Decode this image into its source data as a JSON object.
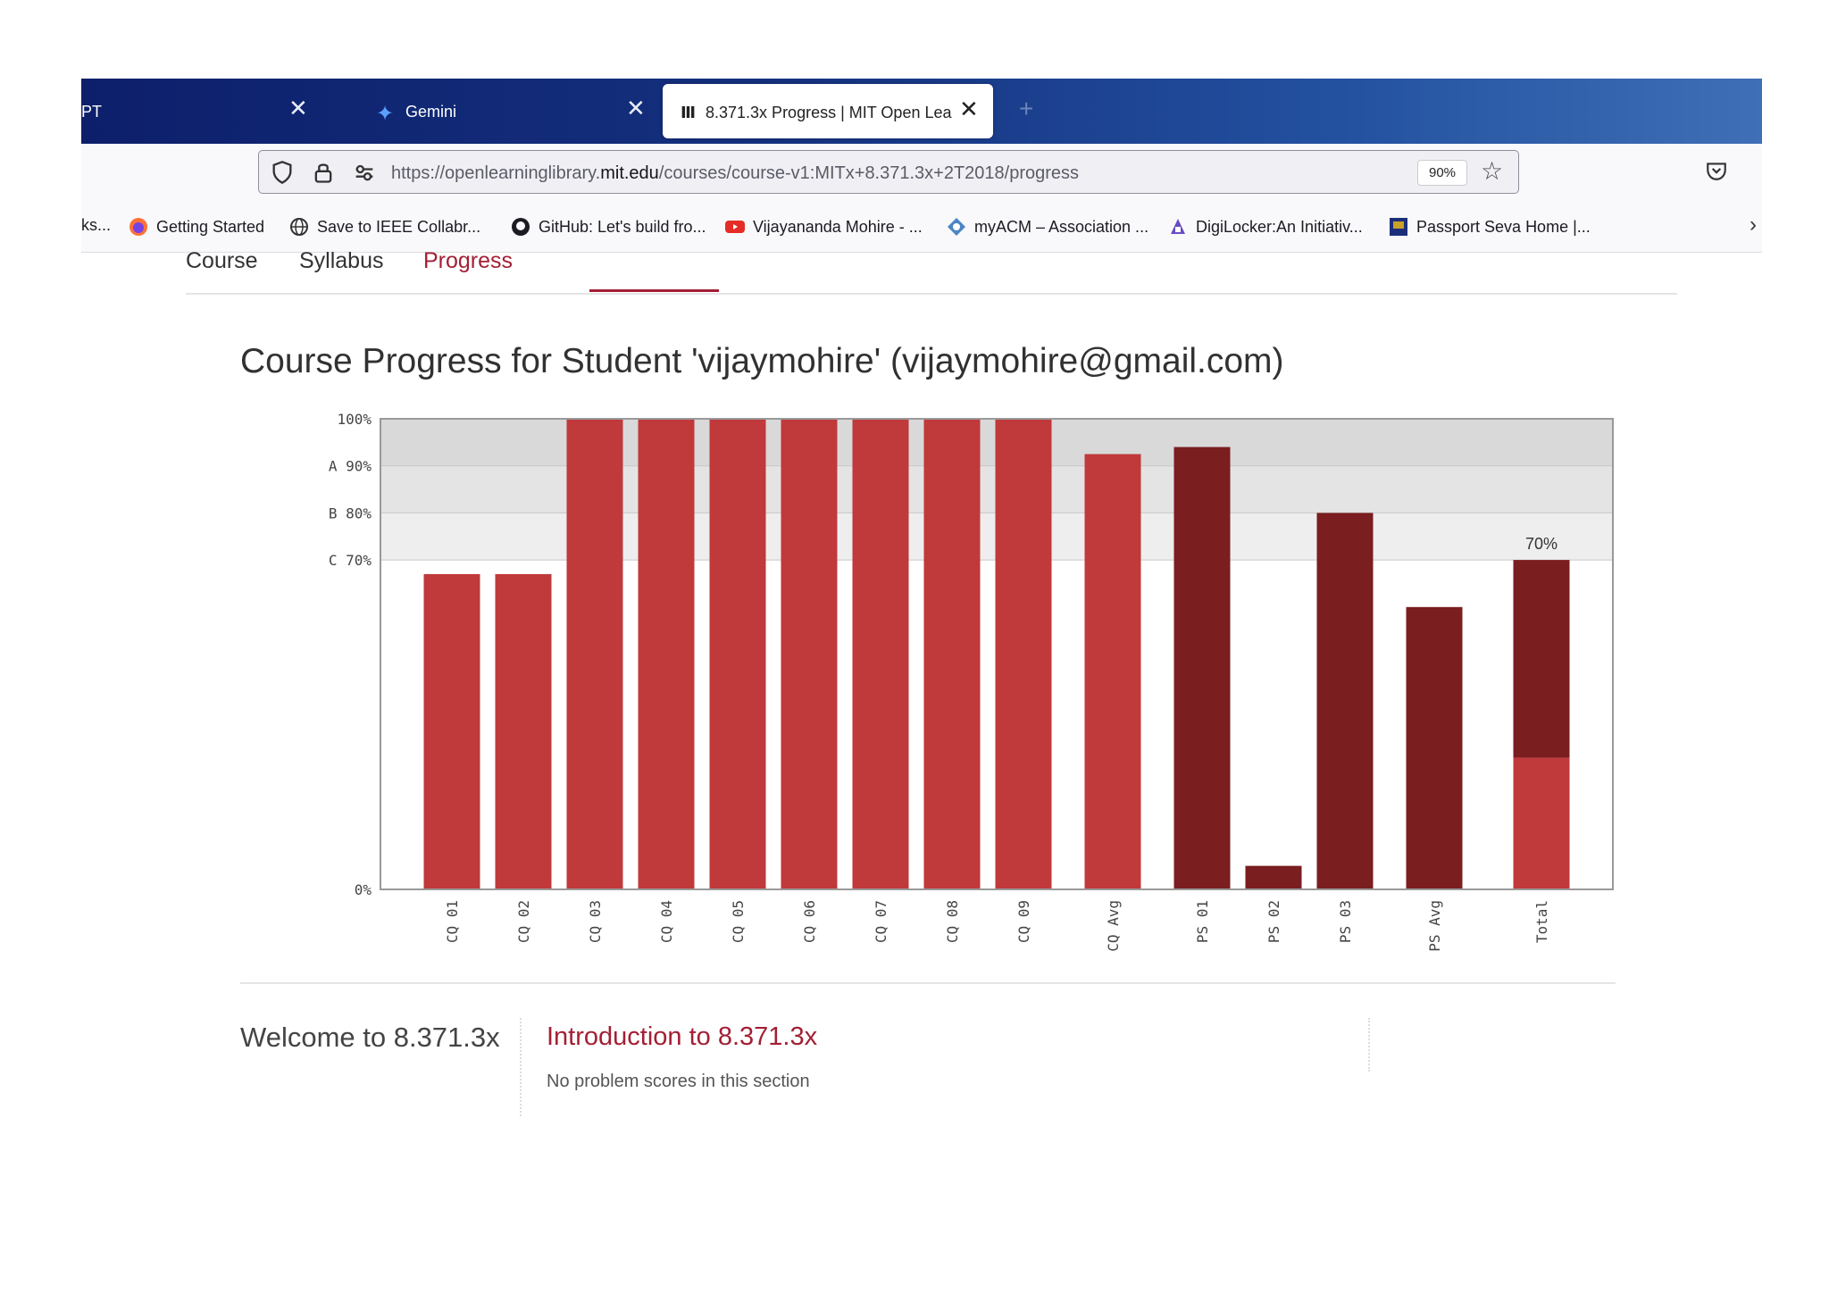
{
  "browser": {
    "tabs": [
      {
        "label": "PT"
      },
      {
        "label": "Gemini"
      },
      {
        "label": "8.371.3x Progress | MIT Open Lea"
      }
    ],
    "url": {
      "prefix": "https://openlearninglibrary.",
      "domain": "mit.edu",
      "path": "/courses/course-v1:MITx+8.371.3x+2T2018/progress"
    },
    "zoom": "90%",
    "bookmarks": [
      {
        "label": "ks...",
        "icon": "bookmark-icon"
      },
      {
        "label": "Getting Started",
        "icon": "firefox-icon"
      },
      {
        "label": "Save to IEEE Collabr...",
        "icon": "globe-icon"
      },
      {
        "label": "GitHub: Let's build fro...",
        "icon": "github-icon"
      },
      {
        "label": "Vijayananda Mohire - ...",
        "icon": "youtube-icon"
      },
      {
        "label": "myACM – Association ...",
        "icon": "acm-icon"
      },
      {
        "label": "DigiLocker:An Initiativ...",
        "icon": "digilocker-icon"
      },
      {
        "label": "Passport Seva Home |...",
        "icon": "passport-icon"
      }
    ]
  },
  "course_nav": {
    "course": "Course",
    "syllabus": "Syllabus",
    "progress": "Progress"
  },
  "page_title": "Course Progress for Student 'vijaymohire' (vijaymohire@gmail.com)",
  "chart_data": {
    "type": "bar",
    "categories": [
      "CQ 01",
      "CQ 02",
      "CQ 03",
      "CQ 04",
      "CQ 05",
      "CQ 06",
      "CQ 07",
      "CQ 08",
      "CQ 09",
      "CQ Avg",
      "PS 01",
      "PS 02",
      "PS 03",
      "PS Avg",
      "Total"
    ],
    "values": [
      67,
      67,
      100,
      100,
      100,
      100,
      100,
      100,
      100,
      92.5,
      94,
      5,
      80,
      60,
      70
    ],
    "total_breakdown": {
      "CQ": 28,
      "PS": 42
    },
    "ylim": [
      0,
      100
    ],
    "y_ticks": [
      {
        "value": 100,
        "label": "100%"
      },
      {
        "value": 90,
        "label": "A 90%"
      },
      {
        "value": 80,
        "label": "B 80%"
      },
      {
        "value": 70,
        "label": "C 70%"
      },
      {
        "value": 0,
        "label": "0%"
      }
    ],
    "grade_bands": [
      {
        "from": 90,
        "to": 100,
        "color": "#d9d9d9"
      },
      {
        "from": 80,
        "to": 90,
        "color": "#e4e4e4"
      },
      {
        "from": 70,
        "to": 80,
        "color": "#eeeeee"
      }
    ],
    "total_label": "70%",
    "colors": {
      "CQ": "#c0393b",
      "PS": "#7a1e20"
    }
  },
  "chapter": {
    "title": "Welcome to 8.371.3x"
  },
  "section": {
    "title": "Introduction to 8.371.3x",
    "note": "No problem scores in this section"
  }
}
